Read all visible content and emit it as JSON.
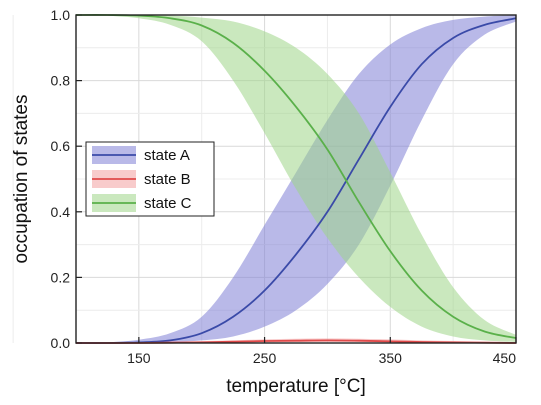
{
  "chart_data": {
    "type": "line",
    "title": "",
    "xlabel": "temperature [°C]",
    "ylabel": "occupation of states",
    "xlim": [
      100,
      450
    ],
    "ylim": [
      0,
      1.0
    ],
    "x_ticks": [
      150,
      250,
      350,
      450
    ],
    "x_tick_labels": [
      "150",
      "250",
      "350",
      "450"
    ],
    "y_ticks": [
      0.0,
      0.2,
      0.4,
      0.6,
      0.8,
      1.0
    ],
    "y_tick_labels": [
      "0.0",
      "0.2",
      "0.4",
      "0.6",
      "0.8",
      "1.0"
    ],
    "grid": true,
    "legend_position": "center-left",
    "x": [
      100,
      125,
      150,
      175,
      200,
      225,
      250,
      275,
      300,
      325,
      350,
      375,
      400,
      425,
      450
    ],
    "series": [
      {
        "name": "state A",
        "color": "#3a4aa8",
        "band_color": "#7f7fd6",
        "values": [
          0.0,
          0.0,
          0.002,
          0.008,
          0.03,
          0.08,
          0.16,
          0.27,
          0.4,
          0.56,
          0.72,
          0.85,
          0.93,
          0.97,
          0.99
        ],
        "band_lower": [
          0.0,
          0.0,
          0.0,
          0.002,
          0.008,
          0.02,
          0.05,
          0.1,
          0.18,
          0.3,
          0.48,
          0.68,
          0.85,
          0.94,
          0.98
        ],
        "band_upper": [
          0.0,
          0.002,
          0.01,
          0.03,
          0.08,
          0.2,
          0.36,
          0.52,
          0.68,
          0.82,
          0.91,
          0.96,
          0.985,
          0.995,
          0.999
        ]
      },
      {
        "name": "state B",
        "color": "#e04a4a",
        "band_color": "#f3a1a1",
        "values": [
          0.0,
          0.0,
          0.0,
          0.001,
          0.002,
          0.004,
          0.006,
          0.007,
          0.008,
          0.007,
          0.005,
          0.003,
          0.002,
          0.001,
          0.0
        ],
        "band_lower": [
          0.0,
          0.0,
          0.0,
          0.0,
          0.0,
          0.001,
          0.002,
          0.003,
          0.003,
          0.003,
          0.002,
          0.001,
          0.0,
          0.0,
          0.0
        ],
        "band_upper": [
          0.002,
          0.002,
          0.003,
          0.004,
          0.006,
          0.008,
          0.011,
          0.013,
          0.014,
          0.013,
          0.011,
          0.008,
          0.006,
          0.004,
          0.003
        ]
      },
      {
        "name": "state C",
        "color": "#5ab04a",
        "band_color": "#9fd688",
        "values": [
          1.0,
          1.0,
          0.998,
          0.99,
          0.968,
          0.915,
          0.83,
          0.72,
          0.59,
          0.43,
          0.28,
          0.16,
          0.08,
          0.035,
          0.015
        ],
        "band_lower": [
          1.0,
          0.998,
          0.99,
          0.97,
          0.92,
          0.8,
          0.64,
          0.47,
          0.32,
          0.2,
          0.11,
          0.05,
          0.02,
          0.008,
          0.003
        ],
        "band_upper": [
          1.0,
          1.0,
          1.0,
          0.998,
          0.992,
          0.98,
          0.95,
          0.9,
          0.82,
          0.7,
          0.52,
          0.33,
          0.17,
          0.07,
          0.025
        ]
      }
    ]
  }
}
